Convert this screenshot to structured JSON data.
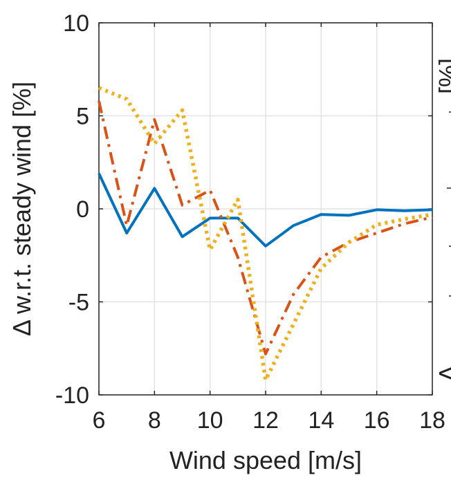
{
  "chart_data": {
    "type": "line",
    "title": "",
    "xlabel": "Wind speed [m/s]",
    "ylabel": "Δ w.r.t. steady wind [%]",
    "xlim": [
      6,
      18
    ],
    "ylim": [
      -10,
      10
    ],
    "xticks": [
      6,
      8,
      10,
      12,
      14,
      16,
      18
    ],
    "yticks": [
      -10,
      -5,
      0,
      5,
      10
    ],
    "xtick_labels": [
      "6",
      "8",
      "10",
      "12",
      "14",
      "16",
      "18"
    ],
    "ytick_labels": [
      "-10",
      "-5",
      "0",
      "5",
      "10"
    ],
    "grid": true,
    "series": [
      {
        "color": "#0072BD",
        "style": "solid",
        "x": [
          6,
          7,
          8,
          9,
          10,
          11,
          12,
          13,
          14,
          15,
          16,
          17,
          18
        ],
        "y": [
          1.9,
          -1.3,
          1.1,
          -1.5,
          -0.5,
          -0.5,
          -2.0,
          -0.9,
          -0.3,
          -0.35,
          -0.05,
          -0.1,
          -0.05
        ]
      },
      {
        "color": "#D95319",
        "style": "dashdot",
        "x": [
          6,
          7,
          8,
          9,
          10,
          11,
          12,
          13,
          14,
          15,
          16,
          17,
          18
        ],
        "y": [
          5.8,
          -0.9,
          4.8,
          0.2,
          1.0,
          -2.6,
          -7.8,
          -4.6,
          -2.6,
          -1.8,
          -1.3,
          -0.8,
          -0.45
        ]
      },
      {
        "color": "#EDB120",
        "style": "dotted",
        "x": [
          6,
          7,
          8,
          9,
          10,
          11,
          12,
          13,
          14,
          15,
          16,
          17,
          18
        ],
        "y": [
          6.5,
          5.9,
          3.5,
          5.3,
          -2.2,
          0.5,
          -9.2,
          -6.2,
          -3.2,
          -1.8,
          -0.85,
          -0.55,
          -0.3
        ]
      }
    ],
    "right_panel_partial_axis": {
      "ytick_labels_visible": [
        "",
        "",
        "",
        ""
      ],
      "ylabel_fragment": "[%]"
    }
  }
}
